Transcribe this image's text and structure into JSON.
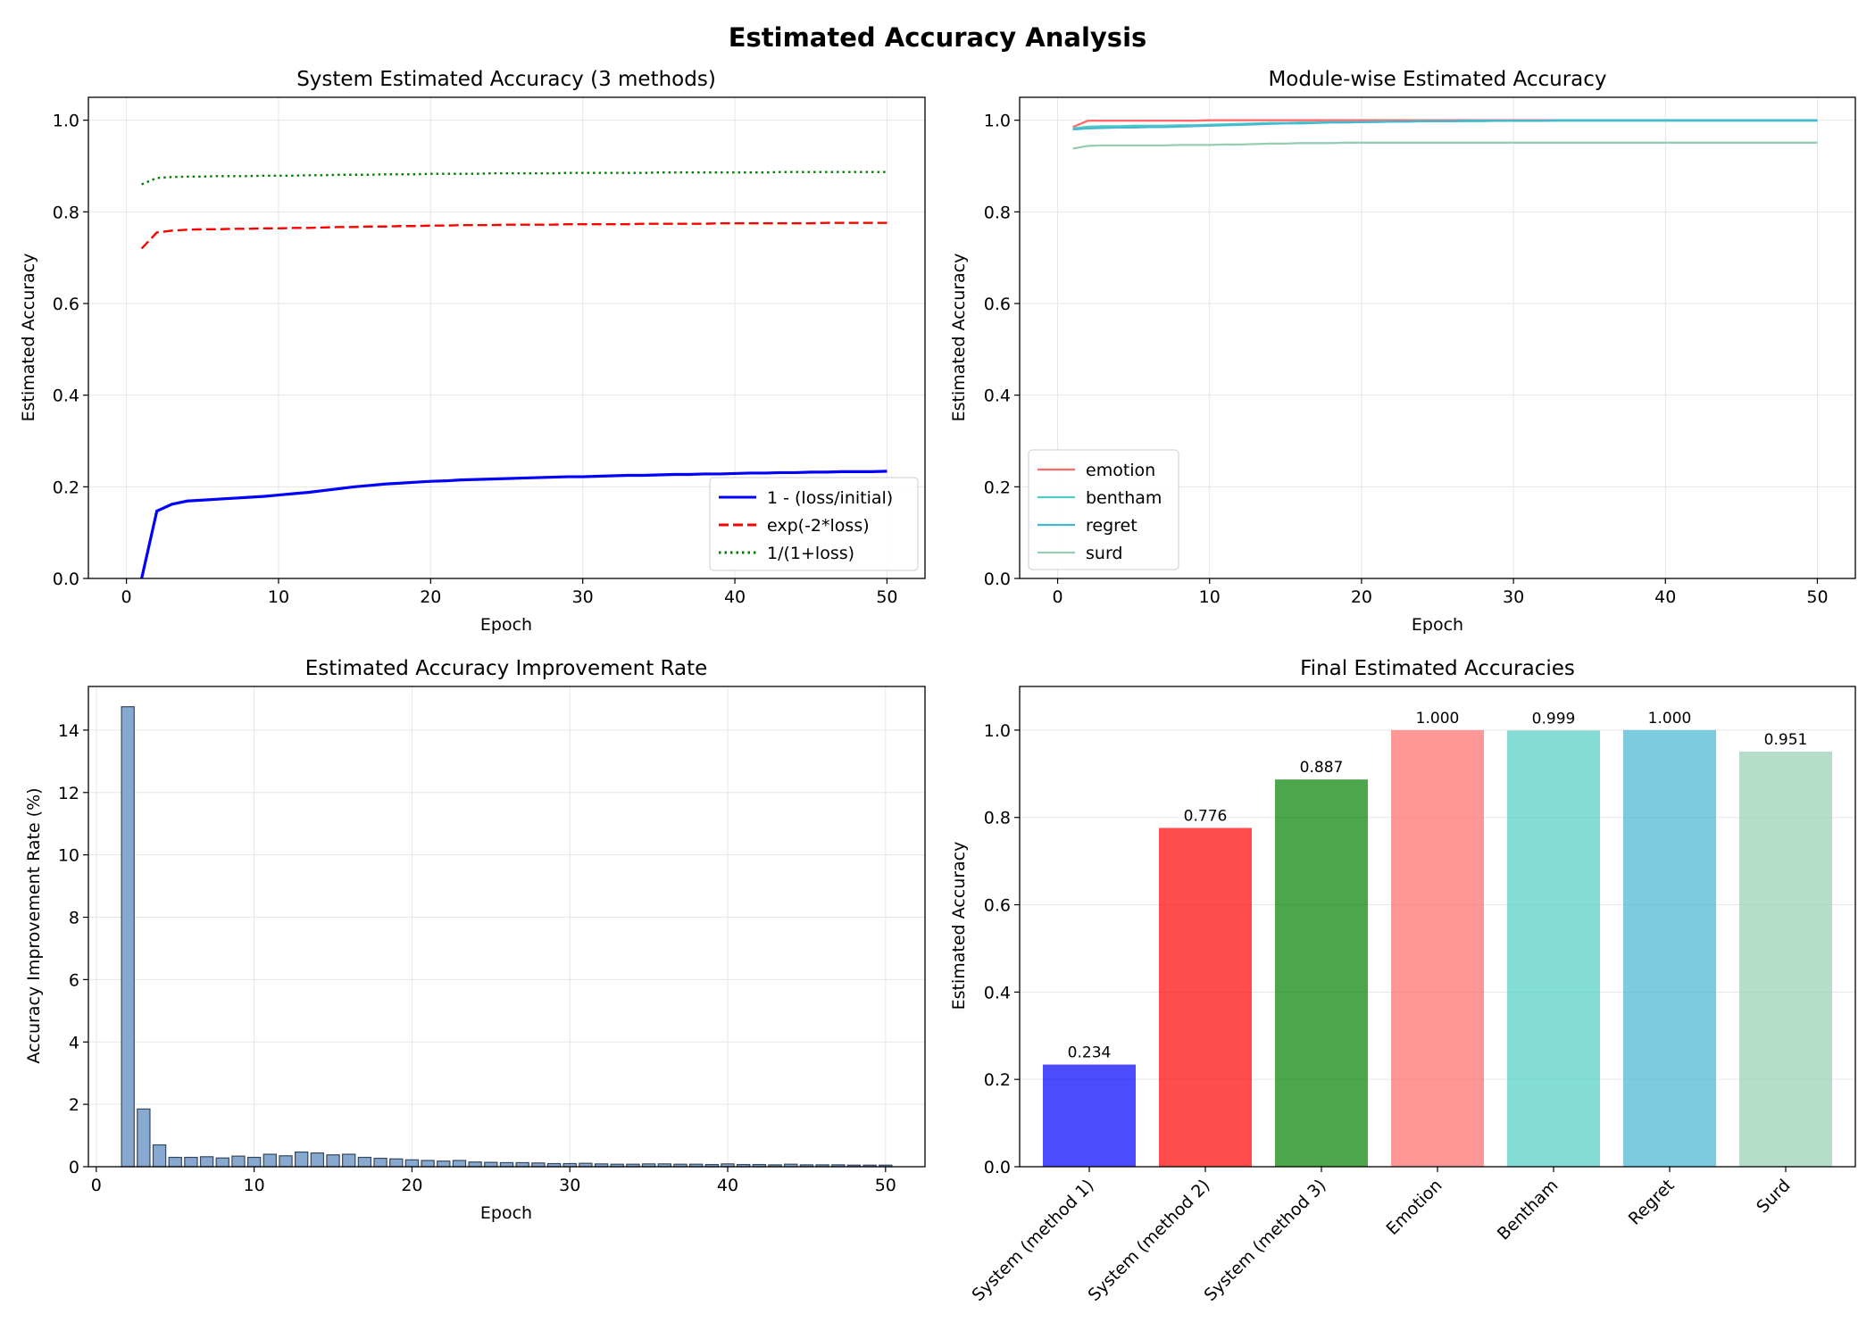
{
  "figure": {
    "title": "Estimated Accuracy Analysis"
  },
  "colors": {
    "blue": "#0000ff",
    "red": "#ff0000",
    "green": "#008000",
    "emotion": "#ff6b6b",
    "bentham": "#4ecdc4",
    "regret": "#45b7d1",
    "surd": "#96ceb4",
    "bar_fill": "#87a9cf",
    "bar_edge": "#35475e",
    "grid": "#e6e6e6"
  },
  "chart_data": [
    {
      "type": "line",
      "title": "System Estimated Accuracy (3 methods)",
      "xlabel": "Epoch",
      "ylabel": "Estimated Accuracy",
      "xlim": [
        -2.5,
        52.5
      ],
      "ylim": [
        0,
        1.05
      ],
      "xticks": [
        0,
        10,
        20,
        30,
        40,
        50
      ],
      "yticks": [
        0.0,
        0.2,
        0.4,
        0.6,
        0.8,
        1.0
      ],
      "grid": true,
      "legend": "lower right",
      "x": [
        1,
        2,
        3,
        4,
        5,
        6,
        7,
        8,
        9,
        10,
        11,
        12,
        13,
        14,
        15,
        16,
        17,
        18,
        19,
        20,
        21,
        22,
        23,
        24,
        25,
        26,
        27,
        28,
        29,
        30,
        31,
        32,
        33,
        34,
        35,
        36,
        37,
        38,
        39,
        40,
        41,
        42,
        43,
        44,
        45,
        46,
        47,
        48,
        49,
        50
      ],
      "series": [
        {
          "name": "1 - (loss/initial)",
          "style": "solid",
          "color": "#0000ff",
          "values": [
            0.0,
            0.147,
            0.162,
            0.169,
            0.171,
            0.173,
            0.175,
            0.177,
            0.179,
            0.182,
            0.185,
            0.188,
            0.192,
            0.196,
            0.2,
            0.203,
            0.206,
            0.208,
            0.21,
            0.212,
            0.213,
            0.215,
            0.216,
            0.217,
            0.218,
            0.219,
            0.22,
            0.221,
            0.222,
            0.222,
            0.223,
            0.224,
            0.225,
            0.225,
            0.226,
            0.227,
            0.227,
            0.228,
            0.228,
            0.229,
            0.23,
            0.23,
            0.231,
            0.231,
            0.232,
            0.232,
            0.233,
            0.233,
            0.233,
            0.234
          ]
        },
        {
          "name": "exp(-2*loss)",
          "style": "dashed",
          "color": "#ff0000",
          "values": [
            0.72,
            0.755,
            0.759,
            0.761,
            0.762,
            0.762,
            0.763,
            0.763,
            0.764,
            0.764,
            0.765,
            0.765,
            0.766,
            0.767,
            0.767,
            0.768,
            0.768,
            0.769,
            0.769,
            0.77,
            0.77,
            0.771,
            0.771,
            0.771,
            0.772,
            0.772,
            0.772,
            0.772,
            0.773,
            0.773,
            0.773,
            0.773,
            0.773,
            0.774,
            0.774,
            0.774,
            0.774,
            0.774,
            0.775,
            0.775,
            0.775,
            0.775,
            0.775,
            0.775,
            0.775,
            0.776,
            0.776,
            0.776,
            0.776,
            0.776
          ]
        },
        {
          "name": "1/(1+loss)",
          "style": "dotted",
          "color": "#008000",
          "values": [
            0.86,
            0.874,
            0.876,
            0.877,
            0.877,
            0.878,
            0.878,
            0.878,
            0.879,
            0.879,
            0.879,
            0.88,
            0.88,
            0.881,
            0.881,
            0.881,
            0.882,
            0.882,
            0.882,
            0.883,
            0.883,
            0.883,
            0.883,
            0.884,
            0.884,
            0.884,
            0.884,
            0.884,
            0.885,
            0.885,
            0.885,
            0.885,
            0.885,
            0.885,
            0.886,
            0.886,
            0.886,
            0.886,
            0.886,
            0.886,
            0.886,
            0.886,
            0.887,
            0.887,
            0.887,
            0.887,
            0.887,
            0.887,
            0.887,
            0.887
          ]
        }
      ]
    },
    {
      "type": "line",
      "title": "Module-wise Estimated Accuracy",
      "xlabel": "Epoch",
      "ylabel": "Estimated Accuracy",
      "xlim": [
        -2.5,
        52.5
      ],
      "ylim": [
        0,
        1.05
      ],
      "xticks": [
        0,
        10,
        20,
        30,
        40,
        50
      ],
      "yticks": [
        0.0,
        0.2,
        0.4,
        0.6,
        0.8,
        1.0
      ],
      "grid": true,
      "legend": "lower left",
      "x": [
        1,
        2,
        3,
        4,
        5,
        6,
        7,
        8,
        9,
        10,
        11,
        12,
        13,
        14,
        15,
        16,
        17,
        18,
        19,
        20,
        21,
        22,
        23,
        24,
        25,
        26,
        27,
        28,
        29,
        30,
        31,
        32,
        33,
        34,
        35,
        36,
        37,
        38,
        39,
        40,
        41,
        42,
        43,
        44,
        45,
        46,
        47,
        48,
        49,
        50
      ],
      "series": [
        {
          "name": "emotion",
          "color": "#ff6b6b",
          "values": [
            0.985,
            0.999,
            0.999,
            0.999,
            0.999,
            0.999,
            0.999,
            0.999,
            0.999,
            1.0,
            1.0,
            1.0,
            1.0,
            1.0,
            1.0,
            1.0,
            1.0,
            1.0,
            1.0,
            1.0,
            1.0,
            1.0,
            1.0,
            1.0,
            1.0,
            1.0,
            1.0,
            1.0,
            1.0,
            1.0,
            1.0,
            1.0,
            1.0,
            1.0,
            1.0,
            1.0,
            1.0,
            1.0,
            1.0,
            1.0,
            1.0,
            1.0,
            1.0,
            1.0,
            1.0,
            1.0,
            1.0,
            1.0,
            1.0,
            1.0
          ]
        },
        {
          "name": "bentham",
          "color": "#4ecdc4",
          "values": [
            0.982,
            0.986,
            0.987,
            0.987,
            0.988,
            0.988,
            0.988,
            0.989,
            0.989,
            0.99,
            0.991,
            0.992,
            0.993,
            0.994,
            0.994,
            0.995,
            0.995,
            0.996,
            0.996,
            0.996,
            0.997,
            0.997,
            0.997,
            0.998,
            0.998,
            0.998,
            0.998,
            0.998,
            0.999,
            0.999,
            0.999,
            0.999,
            0.999,
            0.999,
            0.999,
            0.999,
            0.999,
            0.999,
            0.999,
            0.999,
            0.999,
            0.999,
            0.999,
            0.999,
            0.999,
            0.999,
            0.999,
            0.999,
            0.999,
            0.999
          ]
        },
        {
          "name": "regret",
          "color": "#45b7d1",
          "values": [
            0.98,
            0.982,
            0.983,
            0.984,
            0.984,
            0.985,
            0.985,
            0.986,
            0.987,
            0.988,
            0.989,
            0.99,
            0.991,
            0.992,
            0.993,
            0.993,
            0.994,
            0.995,
            0.995,
            0.996,
            0.996,
            0.997,
            0.997,
            0.998,
            0.998,
            0.998,
            0.999,
            0.999,
            0.999,
            0.999,
            0.999,
            0.999,
            1.0,
            1.0,
            1.0,
            1.0,
            1.0,
            1.0,
            1.0,
            1.0,
            1.0,
            1.0,
            1.0,
            1.0,
            1.0,
            1.0,
            1.0,
            1.0,
            1.0,
            1.0
          ]
        },
        {
          "name": "surd",
          "color": "#96ceb4",
          "values": [
            0.938,
            0.944,
            0.945,
            0.945,
            0.945,
            0.945,
            0.945,
            0.946,
            0.946,
            0.946,
            0.947,
            0.947,
            0.948,
            0.949,
            0.949,
            0.95,
            0.95,
            0.95,
            0.951,
            0.951,
            0.951,
            0.951,
            0.951,
            0.951,
            0.951,
            0.951,
            0.951,
            0.951,
            0.951,
            0.951,
            0.951,
            0.951,
            0.951,
            0.951,
            0.951,
            0.951,
            0.951,
            0.951,
            0.951,
            0.951,
            0.951,
            0.951,
            0.951,
            0.951,
            0.951,
            0.951,
            0.951,
            0.951,
            0.951,
            0.951
          ]
        }
      ]
    },
    {
      "type": "bar",
      "title": "Estimated Accuracy Improvement Rate",
      "xlabel": "Epoch",
      "ylabel": "Accuracy Improvement Rate (%)",
      "xlim": [
        -0.5,
        52.5
      ],
      "ylim": [
        0,
        15.4
      ],
      "xticks": [
        0,
        10,
        20,
        30,
        40,
        50
      ],
      "yticks": [
        0,
        2,
        4,
        6,
        8,
        10,
        12,
        14
      ],
      "grid": true,
      "x": [
        2,
        3,
        4,
        5,
        6,
        7,
        8,
        9,
        10,
        11,
        12,
        13,
        14,
        15,
        16,
        17,
        18,
        19,
        20,
        21,
        22,
        23,
        24,
        25,
        26,
        27,
        28,
        29,
        30,
        31,
        32,
        33,
        34,
        35,
        36,
        37,
        38,
        39,
        40,
        41,
        42,
        43,
        44,
        45,
        46,
        47,
        48,
        49,
        50
      ],
      "values": [
        14.75,
        1.85,
        0.7,
        0.3,
        0.3,
        0.32,
        0.28,
        0.34,
        0.3,
        0.4,
        0.35,
        0.47,
        0.44,
        0.38,
        0.4,
        0.3,
        0.27,
        0.25,
        0.22,
        0.2,
        0.18,
        0.2,
        0.15,
        0.14,
        0.13,
        0.13,
        0.12,
        0.1,
        0.1,
        0.11,
        0.09,
        0.08,
        0.08,
        0.09,
        0.09,
        0.08,
        0.08,
        0.07,
        0.09,
        0.07,
        0.07,
        0.06,
        0.08,
        0.06,
        0.06,
        0.06,
        0.05,
        0.05,
        0.05
      ]
    },
    {
      "type": "bar",
      "title": "Final Estimated Accuracies",
      "xlabel": "",
      "ylabel": "Estimated Accuracy",
      "ylim": [
        0,
        1.1
      ],
      "yticks": [
        0.0,
        0.2,
        0.4,
        0.6,
        0.8,
        1.0
      ],
      "grid": true,
      "categories": [
        "System (method 1)",
        "System (method 2)",
        "System (method 3)",
        "Emotion",
        "Bentham",
        "Regret",
        "Surd"
      ],
      "values": [
        0.234,
        0.776,
        0.887,
        1.0,
        0.999,
        1.0,
        0.951
      ],
      "labels": [
        "0.234",
        "0.776",
        "0.887",
        "1.000",
        "0.999",
        "1.000",
        "0.951"
      ],
      "bar_colors": [
        "#0000ff",
        "#ff0000",
        "#008000",
        "#ff6b6b",
        "#4ecdc4",
        "#45b7d1",
        "#96ceb4"
      ]
    }
  ]
}
